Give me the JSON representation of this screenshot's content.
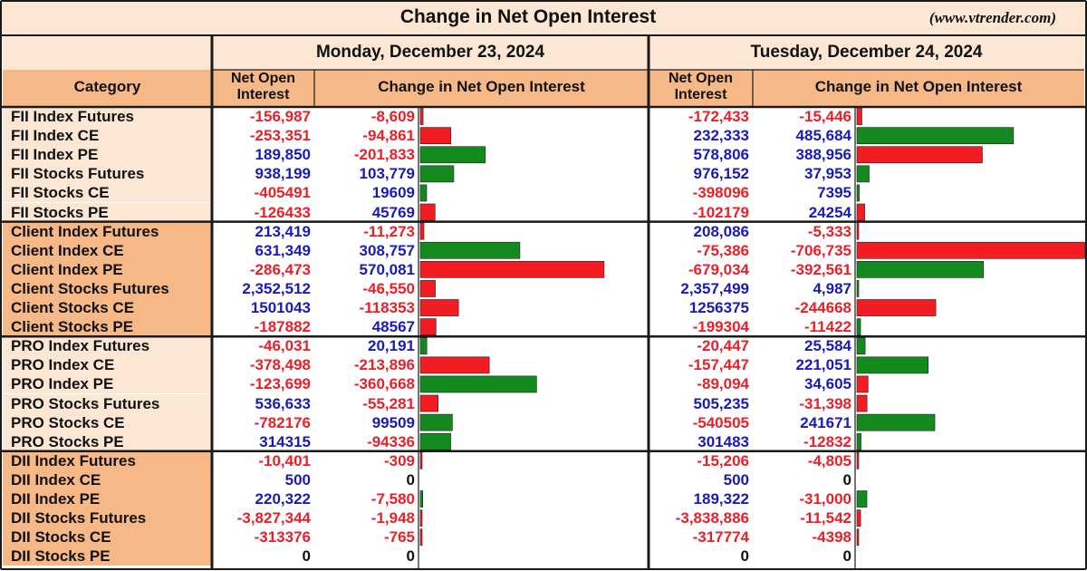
{
  "title": "Change in Net Open Interest",
  "website": "(www.vtrender.com)",
  "colors": {
    "header_bg": "#fbe7d3",
    "column_header_bg": "#f7b887",
    "category_bg_light": "#fbe7d3",
    "category_bg_dark": "#f7b887",
    "positive_bar": "#148a1e",
    "negative_bar": "#f11d23",
    "positive_text": "#1a1ab8",
    "negative_text": "#e8202a"
  },
  "headers": {
    "category": "Category",
    "net_oi": "Net Open Interest",
    "change": "Change in Net Open Interest"
  },
  "dates": [
    "Monday, December 23, 2024",
    "Tuesday, December 24, 2024"
  ],
  "chart_data": {
    "type": "table",
    "bar_rule": "bars drawn to the right of the change column; green when the change is bullish, red when bearish",
    "rows": [
      {
        "category": "FII Index Futures",
        "group": "FII",
        "d1_noi": "-156,987",
        "d1_chg": "-8,609",
        "d2_noi": "-172,433",
        "d2_chg": "-15,446",
        "d1_bar": -8609,
        "d1_color": "red",
        "d2_bar": -15446,
        "d2_color": "red"
      },
      {
        "category": "FII Index CE",
        "group": "FII",
        "d1_noi": "-253,351",
        "d1_chg": "-94,861",
        "d2_noi": "232,333",
        "d2_chg": "485,684",
        "d1_bar": -94861,
        "d1_color": "red",
        "d2_bar": 485684,
        "d2_color": "green"
      },
      {
        "category": "FII Index PE",
        "group": "FII",
        "d1_noi": "189,850",
        "d1_chg": "-201,833",
        "d2_noi": "578,806",
        "d2_chg": "388,956",
        "d1_bar": -201833,
        "d1_color": "green",
        "d2_bar": 388956,
        "d2_color": "red"
      },
      {
        "category": "FII Stocks Futures",
        "group": "FII",
        "d1_noi": "938,199",
        "d1_chg": "103,779",
        "d2_noi": "976,152",
        "d2_chg": "37,953",
        "d1_bar": 103779,
        "d1_color": "green",
        "d2_bar": 37953,
        "d2_color": "green"
      },
      {
        "category": "FII Stocks CE",
        "group": "FII",
        "d1_noi": "-405491",
        "d1_chg": "19609",
        "d2_noi": "-398096",
        "d2_chg": "7395",
        "d1_bar": 19609,
        "d1_color": "green",
        "d2_bar": 7395,
        "d2_color": "green"
      },
      {
        "category": "FII Stocks PE",
        "group": "FII",
        "d1_noi": "-126433",
        "d1_chg": "45769",
        "d2_noi": "-102179",
        "d2_chg": "24254",
        "d1_bar": 45769,
        "d1_color": "red",
        "d2_bar": 24254,
        "d2_color": "red"
      },
      {
        "category": "Client Index Futures",
        "group": "Client",
        "d1_noi": "213,419",
        "d1_chg": "-11,273",
        "d2_noi": "208,086",
        "d2_chg": "-5,333",
        "d1_bar": -11273,
        "d1_color": "red",
        "d2_bar": -5333,
        "d2_color": "red"
      },
      {
        "category": "Client Index CE",
        "group": "Client",
        "d1_noi": "631,349",
        "d1_chg": "308,757",
        "d2_noi": "-75,386",
        "d2_chg": "-706,735",
        "d1_bar": 308757,
        "d1_color": "green",
        "d2_bar": -706735,
        "d2_color": "red"
      },
      {
        "category": "Client Index PE",
        "group": "Client",
        "d1_noi": "-286,473",
        "d1_chg": "570,081",
        "d2_noi": "-679,034",
        "d2_chg": "-392,561",
        "d1_bar": 570081,
        "d1_color": "red",
        "d2_bar": -392561,
        "d2_color": "green"
      },
      {
        "category": "Client Stocks Futures",
        "group": "Client",
        "d1_noi": "2,352,512",
        "d1_chg": "-46,550",
        "d2_noi": "2,357,499",
        "d2_chg": "4,987",
        "d1_bar": -46550,
        "d1_color": "red",
        "d2_bar": 4987,
        "d2_color": "green"
      },
      {
        "category": "Client Stocks CE",
        "group": "Client",
        "d1_noi": "1501043",
        "d1_chg": "-118353",
        "d2_noi": "1256375",
        "d2_chg": "-244668",
        "d1_bar": -118353,
        "d1_color": "red",
        "d2_bar": -244668,
        "d2_color": "red"
      },
      {
        "category": "Client Stocks PE",
        "group": "Client",
        "d1_noi": "-187882",
        "d1_chg": "48567",
        "d2_noi": "-199304",
        "d2_chg": "-11422",
        "d1_bar": 48567,
        "d1_color": "red",
        "d2_bar": -11422,
        "d2_color": "green"
      },
      {
        "category": "PRO Index Futures",
        "group": "PRO",
        "d1_noi": "-46,031",
        "d1_chg": "20,191",
        "d2_noi": "-20,447",
        "d2_chg": "25,584",
        "d1_bar": 20191,
        "d1_color": "green",
        "d2_bar": 25584,
        "d2_color": "green"
      },
      {
        "category": "PRO Index CE",
        "group": "PRO",
        "d1_noi": "-378,498",
        "d1_chg": "-213,896",
        "d2_noi": "-157,447",
        "d2_chg": "221,051",
        "d1_bar": -213896,
        "d1_color": "red",
        "d2_bar": 221051,
        "d2_color": "green"
      },
      {
        "category": "PRO Index PE",
        "group": "PRO",
        "d1_noi": "-123,699",
        "d1_chg": "-360,668",
        "d2_noi": "-89,094",
        "d2_chg": "34,605",
        "d1_bar": -360668,
        "d1_color": "green",
        "d2_bar": 34605,
        "d2_color": "red"
      },
      {
        "category": "PRO Stocks Futures",
        "group": "PRO",
        "d1_noi": "536,633",
        "d1_chg": "-55,281",
        "d2_noi": "505,235",
        "d2_chg": "-31,398",
        "d1_bar": -55281,
        "d1_color": "red",
        "d2_bar": -31398,
        "d2_color": "red"
      },
      {
        "category": "PRO Stocks CE",
        "group": "PRO",
        "d1_noi": "-782176",
        "d1_chg": "99509",
        "d2_noi": "-540505",
        "d2_chg": "241671",
        "d1_bar": 99509,
        "d1_color": "green",
        "d2_bar": 241671,
        "d2_color": "green"
      },
      {
        "category": "PRO Stocks PE",
        "group": "PRO",
        "d1_noi": "314315",
        "d1_chg": "-94336",
        "d2_noi": "301483",
        "d2_chg": "-12832",
        "d1_bar": -94336,
        "d1_color": "green",
        "d2_bar": -12832,
        "d2_color": "green"
      },
      {
        "category": "DII Index Futures",
        "group": "DII",
        "d1_noi": "-10,401",
        "d1_chg": "-309",
        "d2_noi": "-15,206",
        "d2_chg": "-4,805",
        "d1_bar": -309,
        "d1_color": "red",
        "d2_bar": -4805,
        "d2_color": "red"
      },
      {
        "category": "DII Index CE",
        "group": "DII",
        "d1_noi": "500",
        "d1_chg": "0",
        "d2_noi": "500",
        "d2_chg": "0",
        "d1_bar": 0,
        "d1_color": "green",
        "d2_bar": 0,
        "d2_color": "green"
      },
      {
        "category": "DII Index PE",
        "group": "DII",
        "d1_noi": "220,322",
        "d1_chg": "-7,580",
        "d2_noi": "189,322",
        "d2_chg": "-31,000",
        "d1_bar": -7580,
        "d1_color": "green",
        "d2_bar": -31000,
        "d2_color": "green"
      },
      {
        "category": "DII Stocks Futures",
        "group": "DII",
        "d1_noi": "-3,827,344",
        "d1_chg": "-1,948",
        "d2_noi": "-3,838,886",
        "d2_chg": "-11,542",
        "d1_bar": -1948,
        "d1_color": "red",
        "d2_bar": -11542,
        "d2_color": "red"
      },
      {
        "category": "DII Stocks CE",
        "group": "DII",
        "d1_noi": "-313376",
        "d1_chg": "-765",
        "d2_noi": "-317774",
        "d2_chg": "-4398",
        "d1_bar": -765,
        "d1_color": "red",
        "d2_bar": -4398,
        "d2_color": "red"
      },
      {
        "category": "DII Stocks PE",
        "group": "DII",
        "d1_noi": "0",
        "d1_chg": "0",
        "d2_noi": "0",
        "d2_chg": "0",
        "d1_bar": 0,
        "d1_color": "green",
        "d2_bar": 0,
        "d2_color": "green"
      }
    ]
  }
}
